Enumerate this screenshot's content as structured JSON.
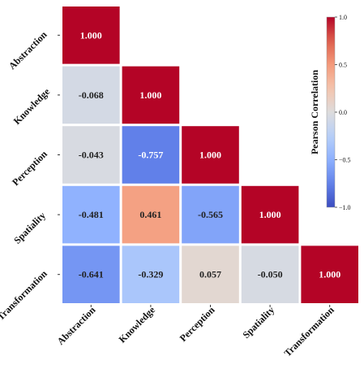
{
  "chart_data": {
    "type": "heatmap",
    "variables": [
      "Abstraction",
      "Knowledge",
      "Perception",
      "Spatiality",
      "Transformation"
    ],
    "matrix": [
      [
        1.0,
        null,
        null,
        null,
        null
      ],
      [
        -0.068,
        1.0,
        null,
        null,
        null
      ],
      [
        -0.043,
        -0.757,
        1.0,
        null,
        null
      ],
      [
        -0.481,
        0.461,
        -0.565,
        1.0,
        null
      ],
      [
        -0.641,
        -0.329,
        0.057,
        -0.05,
        1.0
      ]
    ],
    "value_labels": [
      [
        "1.000",
        "",
        "",
        "",
        ""
      ],
      [
        "-0.068",
        "1.000",
        "",
        "",
        ""
      ],
      [
        "-0.043",
        "-0.757",
        "1.000",
        "",
        ""
      ],
      [
        "-0.481",
        "0.461",
        "-0.565",
        "1.000",
        ""
      ],
      [
        "-0.641",
        "-0.329",
        "0.057",
        "-0.050",
        "1.000"
      ]
    ],
    "mask": "upper-triangle",
    "colorbar": {
      "label": "Pearson Correlation",
      "range": [
        -1.0,
        1.0
      ],
      "ticks": [
        1.0,
        0.5,
        0.0,
        -0.5,
        -1.0
      ],
      "tick_labels": [
        "1.0",
        "0.5",
        "0.0",
        "−0.5",
        "−1.0"
      ],
      "colormap": "coolwarm",
      "colors": {
        "low": "#3b4cc0",
        "mid": "#dddcdc",
        "high": "#b40426"
      }
    },
    "cell_gap_color": "#ffffff"
  }
}
